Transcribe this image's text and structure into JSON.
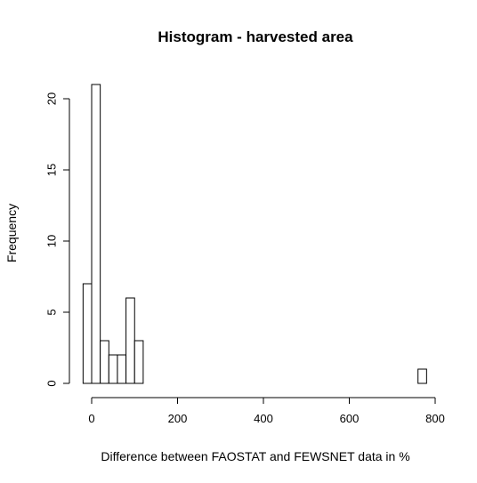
{
  "chart_data": {
    "type": "bar",
    "title": "Histogram - harvested area",
    "xlabel": "Difference between FAOSTAT and FEWSNET data in %",
    "ylabel": "Frequency",
    "xlim": [
      0,
      800
    ],
    "ylim": [
      0,
      20
    ],
    "x_ticks": [
      0,
      200,
      400,
      600,
      800
    ],
    "y_ticks": [
      0,
      5,
      10,
      15,
      20
    ],
    "grid": false,
    "bin_width": 20,
    "bins": [
      {
        "start": -20,
        "end": 0,
        "count": 7
      },
      {
        "start": 0,
        "end": 20,
        "count": 21
      },
      {
        "start": 20,
        "end": 40,
        "count": 3
      },
      {
        "start": 40,
        "end": 60,
        "count": 2
      },
      {
        "start": 60,
        "end": 80,
        "count": 2
      },
      {
        "start": 80,
        "end": 100,
        "count": 6
      },
      {
        "start": 100,
        "end": 120,
        "count": 3
      },
      {
        "start": 120,
        "end": 140,
        "count": 0
      },
      {
        "start": 140,
        "end": 160,
        "count": 0
      },
      {
        "start": 160,
        "end": 180,
        "count": 0
      },
      {
        "start": 180,
        "end": 200,
        "count": 0
      },
      {
        "start": 200,
        "end": 220,
        "count": 0
      },
      {
        "start": 220,
        "end": 240,
        "count": 0
      },
      {
        "start": 240,
        "end": 260,
        "count": 0
      },
      {
        "start": 260,
        "end": 280,
        "count": 0
      },
      {
        "start": 280,
        "end": 300,
        "count": 0
      },
      {
        "start": 300,
        "end": 320,
        "count": 0
      },
      {
        "start": 320,
        "end": 340,
        "count": 0
      },
      {
        "start": 340,
        "end": 360,
        "count": 0
      },
      {
        "start": 360,
        "end": 380,
        "count": 0
      },
      {
        "start": 380,
        "end": 400,
        "count": 0
      },
      {
        "start": 400,
        "end": 420,
        "count": 0
      },
      {
        "start": 420,
        "end": 440,
        "count": 0
      },
      {
        "start": 440,
        "end": 460,
        "count": 0
      },
      {
        "start": 460,
        "end": 480,
        "count": 0
      },
      {
        "start": 480,
        "end": 500,
        "count": 0
      },
      {
        "start": 500,
        "end": 520,
        "count": 0
      },
      {
        "start": 520,
        "end": 540,
        "count": 0
      },
      {
        "start": 540,
        "end": 560,
        "count": 0
      },
      {
        "start": 560,
        "end": 580,
        "count": 0
      },
      {
        "start": 580,
        "end": 600,
        "count": 0
      },
      {
        "start": 600,
        "end": 620,
        "count": 0
      },
      {
        "start": 620,
        "end": 640,
        "count": 0
      },
      {
        "start": 640,
        "end": 660,
        "count": 0
      },
      {
        "start": 660,
        "end": 680,
        "count": 0
      },
      {
        "start": 680,
        "end": 700,
        "count": 0
      },
      {
        "start": 700,
        "end": 720,
        "count": 0
      },
      {
        "start": 720,
        "end": 740,
        "count": 0
      },
      {
        "start": 740,
        "end": 760,
        "count": 0
      },
      {
        "start": 760,
        "end": 780,
        "count": 1
      }
    ]
  }
}
